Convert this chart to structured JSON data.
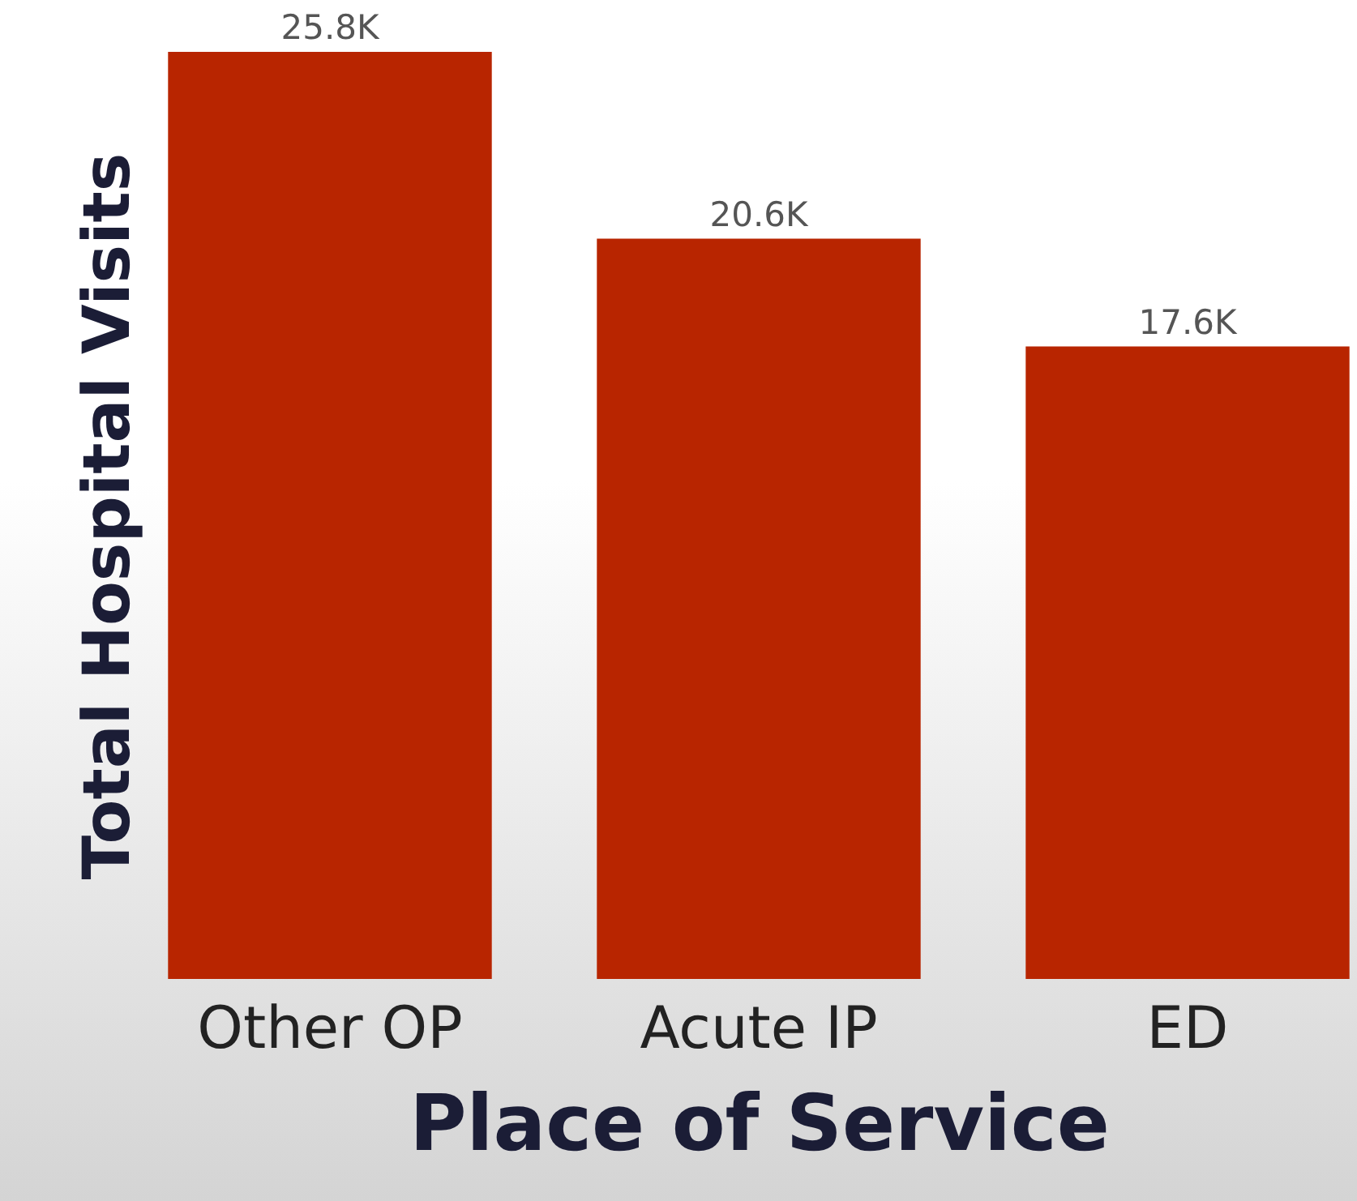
{
  "chart_data": {
    "type": "bar",
    "xlabel": "Place of Service",
    "ylabel": "Total Hospital Visits",
    "categories": [
      "Other OP",
      "Acute IP",
      "ED"
    ],
    "values": [
      25800,
      20600,
      17600
    ],
    "value_labels": [
      "25.8K",
      "20.6K",
      "17.6K"
    ],
    "color": "#b82500",
    "grid": false
  }
}
